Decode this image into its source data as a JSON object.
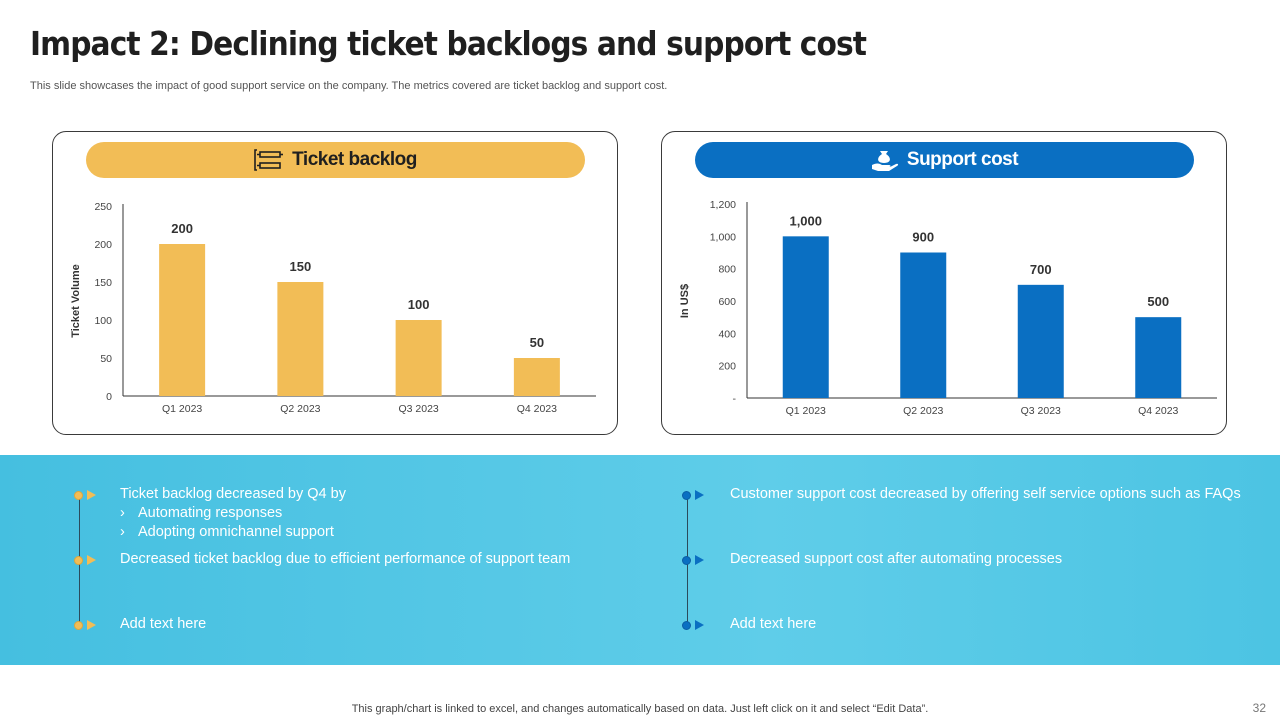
{
  "header": {
    "title": "Impact 2: Declining ticket backlogs and support cost",
    "subtitle": "This slide showcases the impact of good support service on the company. The metrics covered are ticket backlog and support cost."
  },
  "cards": {
    "left": {
      "title": "Ticket backlog",
      "icon": "backlog-icon",
      "color": "#f2bd56"
    },
    "right": {
      "title": "Support cost",
      "icon": "hand-money-icon",
      "color": "#0a6fc2"
    }
  },
  "chart_data": [
    {
      "type": "bar",
      "categories": [
        "Q1 2023",
        "Q2 2023",
        "Q3 2023",
        "Q4 2023"
      ],
      "values": [
        200,
        150,
        100,
        50
      ],
      "value_labels": [
        "200",
        "150",
        "100",
        "50"
      ],
      "ylabel": "Ticket Volume",
      "ylim": [
        0,
        250
      ],
      "yticks": [
        0,
        50,
        100,
        150,
        200,
        250
      ],
      "ytick_labels": [
        "0",
        "50",
        "100",
        "150",
        "200",
        "250"
      ],
      "color": "#f2bd56",
      "grid": false
    },
    {
      "type": "bar",
      "categories": [
        "Q1 2023",
        "Q2 2023",
        "Q3 2023",
        "Q4 2023"
      ],
      "values": [
        1000,
        900,
        700,
        500
      ],
      "value_labels": [
        "1,000",
        "900",
        "700",
        "500"
      ],
      "ylabel": "In US$",
      "ylim": [
        0,
        1200
      ],
      "yticks": [
        0,
        200,
        400,
        600,
        800,
        1000,
        1200
      ],
      "ytick_labels": [
        "-",
        "200",
        "400",
        "600",
        "800",
        "1,000",
        "1,200"
      ],
      "color": "#0a6fc2",
      "grid": false
    }
  ],
  "bullets": {
    "left": {
      "item1": "Ticket backlog decreased by Q4 by",
      "sub1": "Automating responses",
      "sub2": "Adopting omnichannel support",
      "chevron": "›",
      "item2": "Decreased ticket backlog due to efficient performance of support team",
      "item3": "Add text here"
    },
    "right": {
      "item1": "Customer support cost decreased by offering self service options such as FAQs",
      "item2": "Decreased support cost after automating processes",
      "item3": "Add text here"
    }
  },
  "footer": {
    "note": "This graph/chart is linked to excel,  and changes automatically based on data. Just left click on it and select “Edit Data”.",
    "page": "32"
  }
}
